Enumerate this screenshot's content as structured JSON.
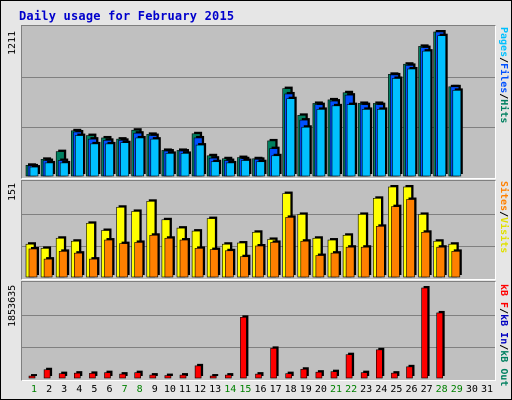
{
  "title": "Daily usage for February 2015",
  "colors": {
    "hits": "#00a0ff",
    "files": "#0050ff",
    "pages": "#00c0ff",
    "visits": "#ffff00",
    "sites": "#ff8000",
    "kbytes": "#ff0000",
    "hits_dark": "#008060",
    "weekend": "#008000"
  },
  "panels": {
    "top": {
      "max_label": "1211",
      "legend": [
        "Pages",
        "Files",
        "Hits"
      ]
    },
    "middle": {
      "max_label": "151",
      "legend": [
        "Sites",
        "Visits"
      ]
    },
    "bottom": {
      "max_label": "1853635",
      "legend": [
        "kB F",
        "kB In",
        "kB Out"
      ]
    }
  },
  "separator": "/",
  "chart_data": [
    {
      "type": "bar",
      "title": "Daily usage for February 2015",
      "categories": [
        "1",
        "2",
        "3",
        "4",
        "5",
        "6",
        "7",
        "8",
        "9",
        "10",
        "11",
        "12",
        "13",
        "14",
        "15",
        "16",
        "17",
        "18",
        "19",
        "20",
        "21",
        "22",
        "23",
        "24",
        "25",
        "26",
        "27",
        "28",
        "29",
        "30",
        "31"
      ],
      "weekend_days": [
        "1",
        "7",
        "8",
        "14",
        "15",
        "21",
        "22",
        "28",
        "29"
      ],
      "series": [
        {
          "name": "Hits",
          "values": [
            90,
            140,
            205,
            380,
            340,
            320,
            310,
            385,
            350,
            215,
            215,
            355,
            170,
            145,
            155,
            145,
            295,
            735,
            510,
            610,
            640,
            700,
            610,
            610,
            855,
            940,
            1090,
            1211,
            750,
            0,
            0
          ]
        },
        {
          "name": "Files",
          "values": [
            85,
            130,
            130,
            370,
            310,
            300,
            300,
            360,
            340,
            210,
            210,
            320,
            150,
            130,
            145,
            140,
            230,
            690,
            470,
            600,
            630,
            680,
            600,
            600,
            850,
            930,
            1080,
            1211,
            750,
            0,
            0
          ]
        },
        {
          "name": "Pages",
          "values": [
            75,
            110,
            110,
            340,
            270,
            270,
            280,
            320,
            310,
            190,
            190,
            260,
            120,
            110,
            130,
            120,
            170,
            650,
            410,
            560,
            590,
            600,
            560,
            560,
            820,
            900,
            1050,
            1180,
            720,
            0,
            0
          ]
        }
      ],
      "ylim": [
        0,
        1211
      ]
    },
    {
      "type": "bar",
      "categories": [
        "1",
        "2",
        "3",
        "4",
        "5",
        "6",
        "7",
        "8",
        "9",
        "10",
        "11",
        "12",
        "13",
        "14",
        "15",
        "16",
        "17",
        "18",
        "19",
        "20",
        "21",
        "22",
        "23",
        "24",
        "25",
        "26",
        "27",
        "28",
        "29",
        "30",
        "31"
      ],
      "series": [
        {
          "name": "Visits",
          "values": [
            55,
            48,
            65,
            60,
            90,
            78,
            117,
            110,
            127,
            96,
            82,
            77,
            98,
            55,
            57,
            75,
            63,
            140,
            105,
            65,
            62,
            70,
            105,
            132,
            151,
            151,
            105,
            60,
            55,
            0,
            0
          ]
        },
        {
          "name": "Sites",
          "values": [
            47,
            30,
            43,
            40,
            30,
            62,
            56,
            58,
            70,
            65,
            62,
            48,
            46,
            44,
            34,
            52,
            58,
            100,
            60,
            36,
            40,
            50,
            50,
            85,
            118,
            130,
            75,
            50,
            43,
            0,
            0
          ]
        }
      ],
      "ylim": [
        0,
        151
      ]
    },
    {
      "type": "bar",
      "categories": [
        "1",
        "2",
        "3",
        "4",
        "5",
        "6",
        "7",
        "8",
        "9",
        "10",
        "11",
        "12",
        "13",
        "14",
        "15",
        "16",
        "17",
        "18",
        "19",
        "20",
        "21",
        "22",
        "23",
        "24",
        "25",
        "26",
        "27",
        "28",
        "29",
        "30",
        "31"
      ],
      "series": [
        {
          "name": "kB F",
          "values": [
            40000,
            170000,
            90000,
            100000,
            95000,
            110000,
            80000,
            110000,
            60000,
            50000,
            60000,
            250000,
            40000,
            60000,
            1250000,
            80000,
            610000,
            90000,
            180000,
            120000,
            130000,
            480000,
            110000,
            580000,
            100000,
            230000,
            1853635,
            1340000,
            0,
            0,
            0
          ]
        }
      ],
      "ylim": [
        0,
        1853635
      ]
    }
  ]
}
